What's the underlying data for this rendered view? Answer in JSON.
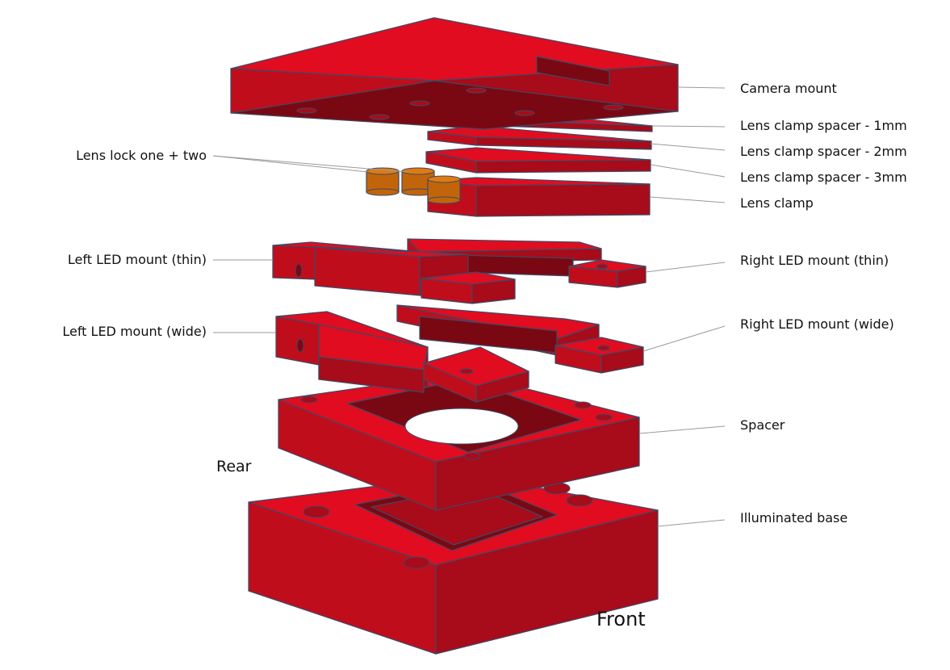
{
  "colors": {
    "top": "#e10c20",
    "left": "#c00d1c",
    "right": "#a80b19",
    "shadow": "#7a0812",
    "edge": "#3c4a66",
    "lock": "#e07a10",
    "lock_side": "#c2650a",
    "leader": "#9a9a9a"
  },
  "labels": {
    "camera_mount": "Camera mount",
    "lens_clamp_spacer_1mm": "Lens clamp spacer - 1mm",
    "lens_clamp_spacer_2mm": "Lens clamp spacer - 2mm",
    "lens_clamp_spacer_3mm": "Lens clamp spacer - 3mm",
    "lens_clamp": "Lens clamp",
    "lens_lock": "Lens lock one + two",
    "left_led_thin": "Left LED mount (thin)",
    "right_led_thin": "Right LED mount (thin)",
    "left_led_wide": "Left LED mount (wide)",
    "right_led_wide": "Right LED mount (wide)",
    "spacer": "Spacer",
    "illuminated_base": "Illuminated base",
    "rear": "Rear",
    "front": "Front"
  }
}
